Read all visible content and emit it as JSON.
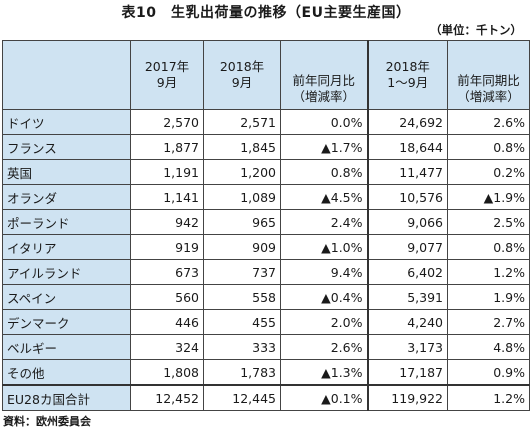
{
  "title": "表10　生乳出荷量の推移（EU主要生産国）",
  "unit": "（単位：千トン）",
  "columns": [
    {
      "line1": "2017年",
      "line2": "9月"
    },
    {
      "line1": "2018年",
      "line2": "9月"
    },
    {
      "line1": "前年同月比",
      "line2": "（増減率）"
    },
    {
      "line1": "2018年",
      "line2": "1～9月"
    },
    {
      "line1": "前年同期比",
      "line2": "（増減率）"
    }
  ],
  "rows": [
    {
      "name": "ドイツ",
      "v2017_9": "2,570",
      "v2018_9": "2,571",
      "yoy_month": "0.0%",
      "v2018_ytd": "24,692",
      "yoy_ytd": "2.6%"
    },
    {
      "name": "フランス",
      "v2017_9": "1,877",
      "v2018_9": "1,845",
      "yoy_month": "▲1.7%",
      "v2018_ytd": "18,644",
      "yoy_ytd": "0.8%"
    },
    {
      "name": "英国",
      "v2017_9": "1,191",
      "v2018_9": "1,200",
      "yoy_month": "0.8%",
      "v2018_ytd": "11,477",
      "yoy_ytd": "0.2%"
    },
    {
      "name": "オランダ",
      "v2017_9": "1,141",
      "v2018_9": "1,089",
      "yoy_month": "▲4.5%",
      "v2018_ytd": "10,576",
      "yoy_ytd": "▲1.9%"
    },
    {
      "name": "ポーランド",
      "v2017_9": "942",
      "v2018_9": "965",
      "yoy_month": "2.4%",
      "v2018_ytd": "9,066",
      "yoy_ytd": "2.5%"
    },
    {
      "name": "イタリア",
      "v2017_9": "919",
      "v2018_9": "909",
      "yoy_month": "▲1.0%",
      "v2018_ytd": "9,077",
      "yoy_ytd": "0.8%"
    },
    {
      "name": "アイルランド",
      "v2017_9": "673",
      "v2018_9": "737",
      "yoy_month": "9.4%",
      "v2018_ytd": "6,402",
      "yoy_ytd": "1.2%"
    },
    {
      "name": "スペイン",
      "v2017_9": "560",
      "v2018_9": "558",
      "yoy_month": "▲0.4%",
      "v2018_ytd": "5,391",
      "yoy_ytd": "1.9%"
    },
    {
      "name": "デンマーク",
      "v2017_9": "446",
      "v2018_9": "455",
      "yoy_month": "2.0%",
      "v2018_ytd": "4,240",
      "yoy_ytd": "2.7%"
    },
    {
      "name": "ベルギー",
      "v2017_9": "324",
      "v2018_9": "333",
      "yoy_month": "2.6%",
      "v2018_ytd": "3,173",
      "yoy_ytd": "4.8%"
    },
    {
      "name": "その他",
      "v2017_9": "1,808",
      "v2018_9": "1,783",
      "yoy_month": "▲1.3%",
      "v2018_ytd": "17,187",
      "yoy_ytd": "0.9%"
    }
  ],
  "total": {
    "name": "EU28カ国合計",
    "v2017_9": "12,452",
    "v2018_9": "12,445",
    "yoy_month": "▲0.1%",
    "v2018_ytd": "119,922",
    "yoy_ytd": "1.2%"
  },
  "source": "資料：欧州委員会",
  "colors": {
    "header_bg": "#cfe3f2",
    "border": "#444444"
  }
}
